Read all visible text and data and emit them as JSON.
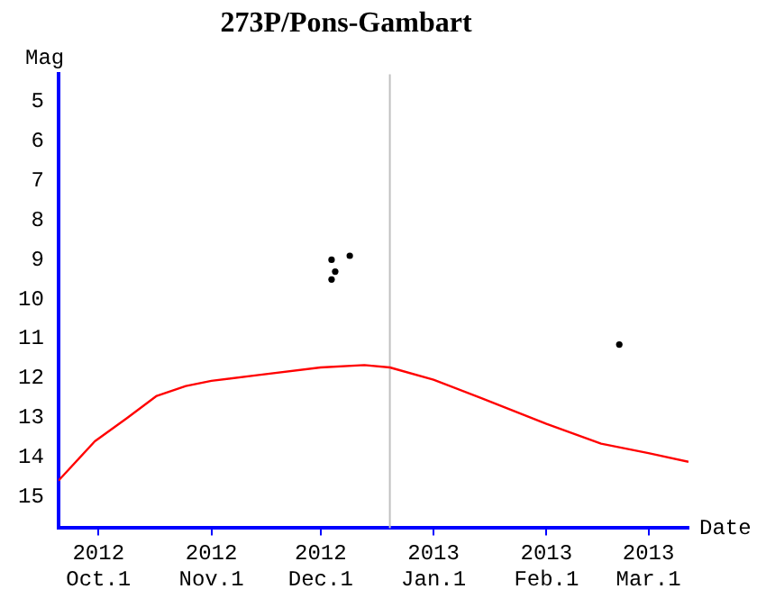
{
  "chart_data": {
    "type": "line",
    "title": "273P/Pons-Gambart",
    "xlabel": "Date",
    "ylabel": "Mag",
    "xlim": [
      "2012-09-20",
      "2013-03-12"
    ],
    "xticks": [
      {
        "value": "2012-10-01",
        "label": "2012 Oct.1"
      },
      {
        "value": "2012-11-01",
        "label": "2012 Nov.1"
      },
      {
        "value": "2012-12-01",
        "label": "2012 Dec.1"
      },
      {
        "value": "2013-01-01",
        "label": "2013 Jan.1"
      },
      {
        "value": "2013-02-01",
        "label": "2013 Feb.1"
      },
      {
        "value": "2013-03-01",
        "label": "2013 Mar.1"
      }
    ],
    "ylim": [
      15.8,
      4.3
    ],
    "yticks": [
      5,
      6,
      7,
      8,
      9,
      10,
      11,
      12,
      13,
      14,
      15
    ],
    "grid": false,
    "legend": false,
    "ref_lines": [
      {
        "axis": "x",
        "value": "2012-12-20",
        "color": "#c0c0c0"
      }
    ],
    "series": [
      {
        "color": "#ff0000",
        "x": [
          "2012-09-20",
          "2012-09-30",
          "2012-10-09",
          "2012-10-17",
          "2012-10-25",
          "2012-11-01",
          "2012-11-14",
          "2012-12-01",
          "2012-12-13",
          "2012-12-20",
          "2013-01-01",
          "2013-01-14",
          "2013-02-01",
          "2013-02-16",
          "2013-03-01",
          "2013-03-12"
        ],
        "values": [
          14.6,
          13.6,
          13.0,
          12.45,
          12.2,
          12.07,
          11.92,
          11.73,
          11.67,
          11.73,
          12.04,
          12.5,
          13.16,
          13.66,
          13.9,
          14.12
        ]
      },
      {
        "type": "scatter",
        "color": "#000000",
        "x": [
          "2012-12-04",
          "2012-12-04",
          "2012-12-05",
          "2012-12-09",
          "2013-02-21"
        ],
        "values": [
          9.5,
          9.0,
          9.3,
          8.9,
          11.15
        ]
      }
    ]
  }
}
